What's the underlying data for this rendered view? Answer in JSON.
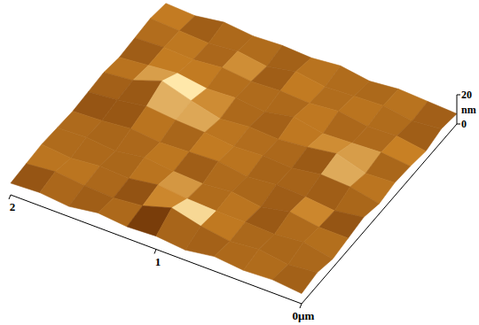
{
  "chart_data": {
    "type": "surface",
    "xlim": [
      0,
      2
    ],
    "xticks": [
      {
        "value": 0,
        "label": "0µm"
      },
      1,
      2
    ],
    "ylim": [
      0,
      2
    ],
    "zlim": [
      0,
      20
    ],
    "zticks": [
      0,
      20
    ],
    "zlabel": "nm",
    "x": [
      0,
      0.2,
      0.4,
      0.6,
      0.8,
      1,
      1.2,
      1.4,
      1.6,
      1.8,
      2
    ],
    "y": [
      0,
      0.2,
      0.4,
      0.6,
      0.8,
      1,
      1.2,
      1.4,
      1.6,
      1.8,
      2
    ],
    "z": [
      [
        7,
        9,
        6,
        8,
        10,
        7,
        9,
        8,
        6,
        9,
        7
      ],
      [
        9,
        7,
        10,
        8,
        7,
        11,
        8,
        10,
        9,
        7,
        8
      ],
      [
        8,
        10,
        8,
        11,
        9,
        12,
        14,
        9,
        8,
        10,
        9
      ],
      [
        10,
        8,
        9,
        7,
        10,
        9,
        11,
        8,
        11,
        9,
        7
      ],
      [
        7,
        11,
        9,
        10,
        8,
        10,
        9,
        12,
        9,
        8,
        10
      ],
      [
        9,
        16,
        10,
        8,
        11,
        9,
        10,
        8,
        10,
        11,
        8
      ],
      [
        8,
        10,
        12,
        9,
        10,
        11,
        8,
        10,
        9,
        7,
        9
      ],
      [
        10,
        8,
        9,
        11,
        9,
        12,
        13,
        9,
        11,
        10,
        8
      ],
      [
        7,
        9,
        10,
        8,
        11,
        14,
        19,
        12,
        9,
        8,
        10
      ],
      [
        9,
        11,
        8,
        10,
        9,
        11,
        12,
        10,
        10,
        9,
        7
      ],
      [
        8,
        9,
        10,
        9,
        8,
        9,
        10,
        8,
        9,
        10,
        8
      ]
    ]
  }
}
